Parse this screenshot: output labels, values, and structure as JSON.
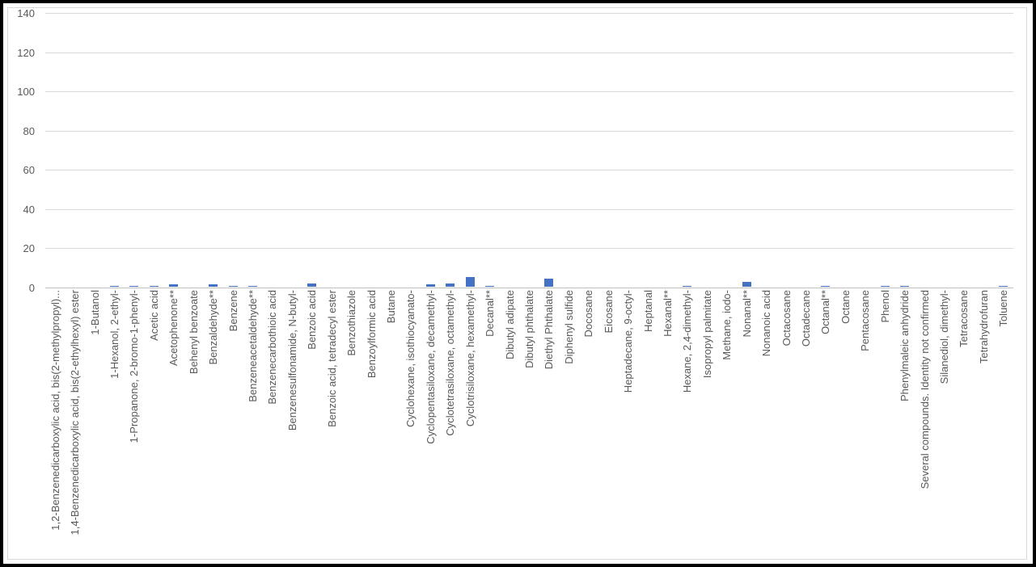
{
  "chart_data": {
    "type": "bar",
    "title": "",
    "xlabel": "",
    "ylabel": "",
    "ylim": [
      0,
      140
    ],
    "y_ticks": [
      0,
      20,
      40,
      60,
      80,
      100,
      120,
      140
    ],
    "grid": true,
    "legend": false,
    "bar_color": "#4472C4",
    "gridline_color": "#D9D9D9",
    "axis_line_color": "#BFBFBF",
    "tick_label_color": "#595959",
    "categories": [
      "1,2-Benzenedicarboxylic acid, bis(2-methylpropyl)...",
      "1,4-Benzenedicarboxylic acid, bis(2-ethylhexyl) ester",
      "1-Butanol",
      "1-Hexanol, 2-ethyl-",
      "1-Propanone, 2-bromo-1-phenyl-",
      "Acetic acid",
      "Acetophenone**",
      "Behenyl benzoate",
      "Benzaldehyde**",
      "Benzene",
      "Benzeneacetaldehyde**",
      "Benzenecarbothioic acid",
      "Benzenesulfonamide, N-butyl-",
      "Benzoic acid",
      "Benzoic acid, tetradecyl ester",
      "Benzothiazole",
      "Benzoylformic acid",
      "Butane",
      "Cyclohexane, isothiocyanato-",
      "Cyclopentasiloxane, decamethyl-",
      "Cyclotetrasiloxane, octamethyl-",
      "Cyclotrisiloxane, hexamethyl-",
      "Decanal**",
      "Dibutyl adipate",
      "Dibutyl phthalate",
      "Diethyl Phthalate",
      "Diphenyl sulfide",
      "Docosane",
      "Eicosane",
      "Heptadecane, 9-octyl-",
      "Heptanal",
      "Hexanal**",
      "Hexane, 2,4-dimethyl-",
      "Isopropyl palmitate",
      "Methane, iodo-",
      "Nonanal**",
      "Nonanoic acid",
      "Octacosane",
      "Octadecane",
      "Octanal**",
      "Octane",
      "Pentacosane",
      "Phenol",
      "Phenylmaleic anhydride",
      "Several compounds. Identity not confirmed",
      "Silanediol, dimethyl-",
      "Tetracosane",
      "Tetrahydrofuran",
      "Toluene"
    ],
    "values": [
      0,
      0,
      0,
      0.8,
      0.8,
      0.8,
      1.6,
      0,
      1.5,
      0.8,
      0.8,
      0,
      0,
      1.8,
      0,
      0,
      0,
      0,
      0,
      1.4,
      2,
      5.3,
      0.5,
      0,
      0,
      4.2,
      0,
      0,
      0,
      0,
      0,
      0,
      0.6,
      0,
      0,
      2.8,
      0,
      0,
      0,
      0.7,
      0,
      0,
      0.8,
      0.7,
      0,
      0,
      0,
      0,
      0.7
    ]
  }
}
